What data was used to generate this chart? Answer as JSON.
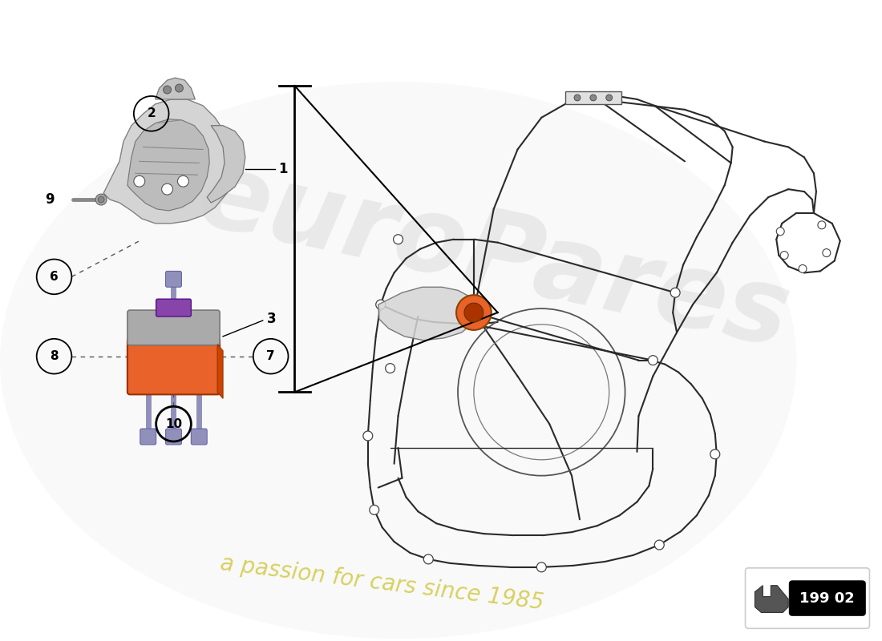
{
  "page_ref": "199 02",
  "bg_color": "#ffffff",
  "watermark_text1": "euroPares",
  "watermark_text2": "a passion for cars since 1985",
  "mount_body_color": "#e8622a",
  "mount_top_color": "#aaaaaa",
  "mount_purple": "#8844aa",
  "bolt_color": "#9090bb",
  "line_color": "#000000",
  "dashed_line_color": "#555555",
  "frame_line_color": "#333333",
  "frame_fill_color": "#f0f0f0",
  "watermark1_color": "#d8d8d8",
  "watermark2_color": "#c8c020"
}
